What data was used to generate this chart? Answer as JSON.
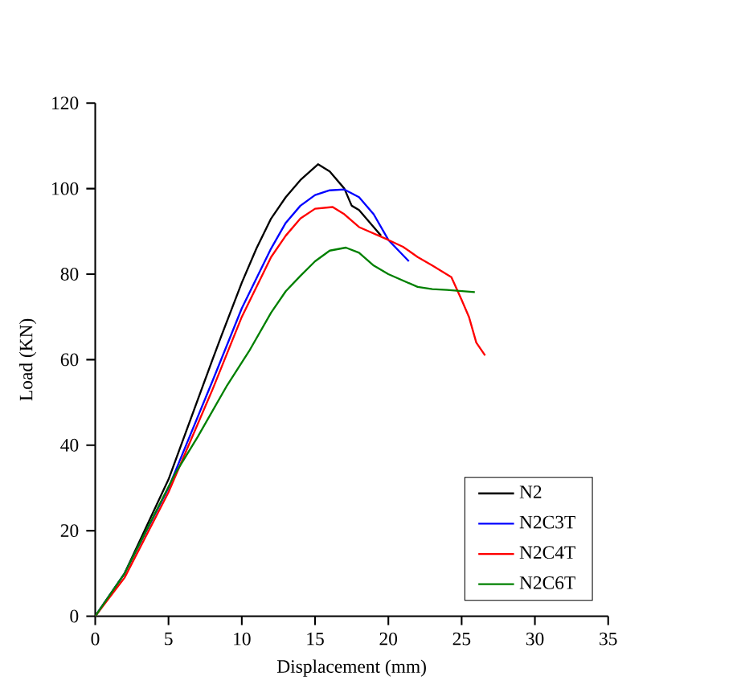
{
  "chart_data": {
    "type": "line",
    "xlabel": "Displacement (mm)",
    "ylabel": "Load (KN)",
    "xlim": [
      0,
      35
    ],
    "ylim": [
      0,
      120
    ],
    "xticks": [
      0,
      5,
      10,
      15,
      20,
      25,
      30,
      35
    ],
    "yticks": [
      0,
      20,
      40,
      60,
      80,
      100,
      120
    ],
    "grid": false,
    "legend": "bottom right",
    "marker": "none",
    "line_style": "solid",
    "series": [
      {
        "name": "N2",
        "color": "#000000",
        "x": [
          0,
          2,
          5,
          8,
          8.6,
          10,
          11,
          12,
          13,
          14,
          15.2,
          16,
          17,
          17.5,
          18,
          19,
          19.5
        ],
        "values": [
          0,
          10,
          32,
          60,
          65.5,
          78,
          86,
          93,
          98,
          102,
          105.7,
          104,
          100,
          96,
          95,
          91,
          89
        ]
      },
      {
        "name": "N2C3T",
        "color": "#0000ff",
        "x": [
          0,
          2,
          5,
          8,
          10,
          12,
          13,
          14,
          15,
          16,
          17,
          18,
          19,
          20,
          21.4
        ],
        "values": [
          0,
          10,
          30,
          55,
          72,
          86,
          92,
          96,
          98.5,
          99.6,
          99.8,
          98,
          94,
          88,
          83
        ]
      },
      {
        "name": "N2C4T",
        "color": "#ff0000",
        "x": [
          0,
          2,
          5,
          8,
          10,
          12,
          13,
          14,
          15,
          16.2,
          17,
          18,
          19,
          20,
          21,
          22,
          23,
          24.3,
          25,
          25.5,
          26,
          26.6
        ],
        "values": [
          0,
          9,
          29,
          53,
          70,
          84,
          89,
          93,
          95.3,
          95.7,
          94,
          91,
          89.5,
          88,
          86.4,
          84,
          82,
          79.3,
          74,
          70,
          64,
          61
        ]
      },
      {
        "name": "N2C6T",
        "color": "#008000",
        "x": [
          0,
          2,
          5.4,
          7,
          9,
          10.5,
          12,
          13,
          14,
          15,
          16,
          17.1,
          18,
          19,
          20,
          21,
          22,
          23,
          24,
          25.9
        ],
        "values": [
          0,
          10,
          33,
          42,
          54,
          62,
          71,
          76,
          79.6,
          83,
          85.5,
          86.2,
          85,
          82,
          80,
          78.5,
          77,
          76.5,
          76.3,
          75.8
        ]
      }
    ]
  }
}
